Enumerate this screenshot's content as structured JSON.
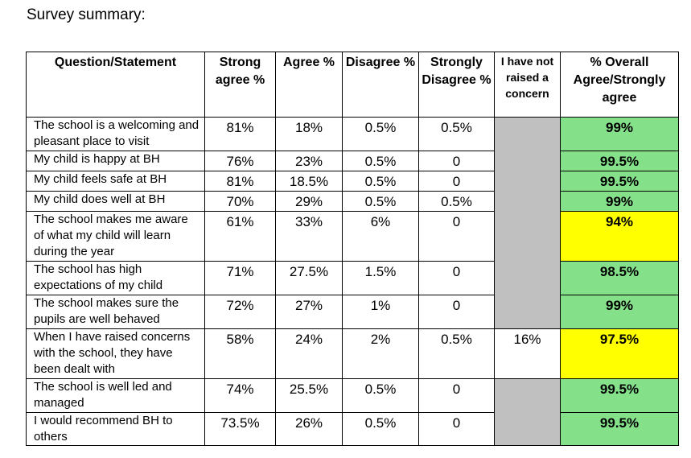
{
  "title": "Survey summary:",
  "headers": {
    "question": "Question/Statement",
    "strong_agree": "Strong agree %",
    "agree": "Agree %",
    "disagree": "Disagree %",
    "strongly_disagree": "Strongly Disagree %",
    "not_raised": "I have not raised a concern",
    "overall": "% Overall Agree/Strongly agree"
  },
  "rows": [
    {
      "q": "The school is a welcoming and pleasant place to visit",
      "sa": "81%",
      "a": "18%",
      "d": "0.5%",
      "sd": "0.5%",
      "nr": "",
      "o": "99%",
      "hl": "green"
    },
    {
      "q": "My child is happy at BH",
      "sa": "76%",
      "a": "23%",
      "d": "0.5%",
      "sd": "0",
      "nr": "",
      "o": "99.5%",
      "hl": "green"
    },
    {
      "q": "My child feels safe at BH",
      "sa": "81%",
      "a": "18.5%",
      "d": "0.5%",
      "sd": "0",
      "nr": "",
      "o": "99.5%",
      "hl": "green"
    },
    {
      "q": "My child does well at BH",
      "sa": "70%",
      "a": "29%",
      "d": "0.5%",
      "sd": "0.5%",
      "nr": "",
      "o": "99%",
      "hl": "green"
    },
    {
      "q": "The school makes me aware of what my child will learn during the year",
      "sa": "61%",
      "a": "33%",
      "d": "6%",
      "sd": "0",
      "nr": "",
      "o": "94%",
      "hl": "yellow"
    },
    {
      "q": "The school has high expectations of my child",
      "sa": "71%",
      "a": "27.5%",
      "d": "1.5%",
      "sd": "0",
      "nr": "",
      "o": "98.5%",
      "hl": "green"
    },
    {
      "q": "The school makes sure the pupils are well behaved",
      "sa": "72%",
      "a": "27%",
      "d": "1%",
      "sd": "0",
      "nr": "",
      "o": "99%",
      "hl": "green"
    },
    {
      "q": "When I have raised concerns with the school, they have been dealt with",
      "sa": "58%",
      "a": "24%",
      "d": "2%",
      "sd": "0.5%",
      "nr": "16%",
      "o": "97.5%",
      "hl": "yellow"
    },
    {
      "q": "The school is well led and managed",
      "sa": "74%",
      "a": "25.5%",
      "d": "0.5%",
      "sd": "0",
      "nr": "",
      "o": "99.5%",
      "hl": "green"
    },
    {
      "q": "I would recommend BH to others",
      "sa": "73.5%",
      "a": "26%",
      "d": "0.5%",
      "sd": "0",
      "nr": "",
      "o": "99.5%",
      "hl": "green"
    }
  ],
  "colors": {
    "green": "#85e08a",
    "yellow": "#ffff00",
    "gray": "#c0c0c0"
  }
}
